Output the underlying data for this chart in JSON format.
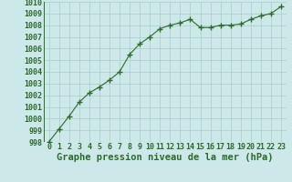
{
  "x": [
    0,
    1,
    2,
    3,
    4,
    5,
    6,
    7,
    8,
    9,
    10,
    11,
    12,
    13,
    14,
    15,
    16,
    17,
    18,
    19,
    20,
    21,
    22,
    23
  ],
  "y": [
    998.0,
    999.1,
    1000.2,
    1001.4,
    1002.2,
    1002.7,
    1003.3,
    1004.0,
    1005.5,
    1006.4,
    1007.0,
    1007.7,
    1008.0,
    1008.2,
    1008.5,
    1007.8,
    1007.8,
    1008.0,
    1008.0,
    1008.1,
    1008.5,
    1008.8,
    1009.0,
    1009.6
  ],
  "line_color": "#2d6a2d",
  "marker": "+",
  "marker_size": 4,
  "bg_color": "#cce8e8",
  "grid_color": "#aacccc",
  "xlabel": "Graphe pression niveau de la mer (hPa)",
  "xlabel_fontsize": 7.5,
  "tick_fontsize": 6,
  "ylim": [
    998,
    1010
  ],
  "xlim": [
    -0.5,
    23.5
  ],
  "yticks": [
    998,
    999,
    1000,
    1001,
    1002,
    1003,
    1004,
    1005,
    1006,
    1007,
    1008,
    1009,
    1010
  ],
  "xticks": [
    0,
    1,
    2,
    3,
    4,
    5,
    6,
    7,
    8,
    9,
    10,
    11,
    12,
    13,
    14,
    15,
    16,
    17,
    18,
    19,
    20,
    21,
    22,
    23
  ]
}
